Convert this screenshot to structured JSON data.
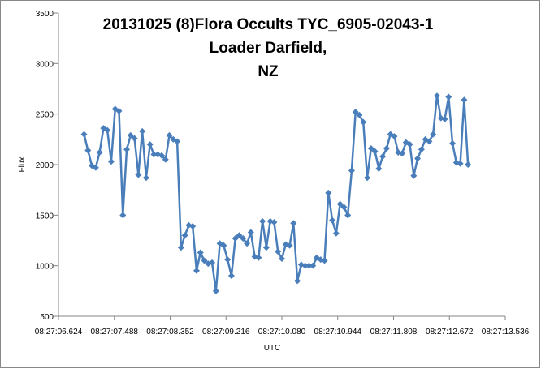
{
  "chart_data": {
    "type": "line",
    "title_lines": [
      "20131025 (8)Flora Occults  TYC_6905-02043-1",
      "Loader Darfield,",
      "NZ"
    ],
    "x_label": "UTC",
    "y_label": "Flux",
    "x": [
      7.02,
      7.08,
      7.14,
      7.2,
      7.26,
      7.32,
      7.38,
      7.44,
      7.5,
      7.56,
      7.62,
      7.68,
      7.74,
      7.8,
      7.86,
      7.92,
      7.98,
      8.04,
      8.1,
      8.16,
      8.22,
      8.28,
      8.34,
      8.4,
      8.46,
      8.52,
      8.58,
      8.64,
      8.7,
      8.76,
      8.82,
      8.88,
      8.94,
      9.0,
      9.06,
      9.12,
      9.18,
      9.24,
      9.3,
      9.36,
      9.42,
      9.48,
      9.54,
      9.6,
      9.66,
      9.72,
      9.78,
      9.84,
      9.9,
      9.96,
      10.02,
      10.08,
      10.14,
      10.2,
      10.26,
      10.32,
      10.38,
      10.44,
      10.5,
      10.56,
      10.62,
      10.68,
      10.74,
      10.8,
      10.86,
      10.92,
      10.98,
      11.04,
      11.1,
      11.16,
      11.22,
      11.28,
      11.34,
      11.4,
      11.46,
      11.52,
      11.58,
      11.64,
      11.7,
      11.76,
      11.82,
      11.88,
      11.94,
      12.0,
      12.06,
      12.12,
      12.18,
      12.24,
      12.3,
      12.36,
      12.42,
      12.48,
      12.54,
      12.6,
      12.66,
      12.72,
      12.78,
      12.84,
      12.9,
      12.96
    ],
    "series": [
      {
        "name": "Flux",
        "color": "#4a7ebb",
        "values": [
          2300,
          2140,
          1990,
          1970,
          2120,
          2360,
          2340,
          2030,
          2550,
          2530,
          1500,
          2150,
          2290,
          2260,
          1900,
          2330,
          1870,
          2200,
          2100,
          2100,
          2090,
          2050,
          2290,
          2250,
          2230,
          1180,
          1300,
          1400,
          1390,
          950,
          1130,
          1050,
          1020,
          1030,
          750,
          1220,
          1200,
          1060,
          900,
          1270,
          1300,
          1270,
          1220,
          1330,
          1090,
          1080,
          1440,
          1180,
          1440,
          1430,
          1140,
          1070,
          1210,
          1200,
          1420,
          850,
          1010,
          1000,
          1000,
          1000,
          1080,
          1060,
          1050,
          1720,
          1450,
          1320,
          1610,
          1580,
          1500,
          1940,
          2520,
          2490,
          2420,
          1870,
          2160,
          2130,
          1960,
          2080,
          2160,
          2300,
          2280,
          2120,
          2110,
          2220,
          2200,
          1890,
          2060,
          2150,
          2250,
          2230,
          2300,
          2680,
          2460,
          2450,
          2670,
          2210,
          2020,
          2010,
          2640,
          2000
        ]
      }
    ],
    "xlim": [
      6.624,
      13.536
    ],
    "xticks": [
      {
        "value": 6.624,
        "label": "08:27:06.624"
      },
      {
        "value": 7.488,
        "label": "08:27:07.488"
      },
      {
        "value": 8.352,
        "label": "08:27:08.352"
      },
      {
        "value": 9.216,
        "label": "08:27:09.216"
      },
      {
        "value": 10.08,
        "label": "08:27:10.080"
      },
      {
        "value": 10.944,
        "label": "08:27:10.944"
      },
      {
        "value": 11.808,
        "label": "08:27:11.808"
      },
      {
        "value": 12.672,
        "label": "08:27:12.672"
      },
      {
        "value": 13.536,
        "label": "08:27:13.536"
      }
    ],
    "ylim": [
      500,
      3500
    ],
    "yticks": [
      500,
      1000,
      1500,
      2000,
      2500,
      3000,
      3500
    ],
    "grid": false
  }
}
